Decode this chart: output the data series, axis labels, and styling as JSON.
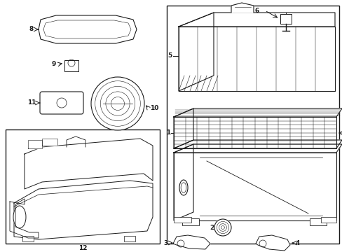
{
  "bg_color": "#ffffff",
  "line_color": "#1a1a1a",
  "fig_width": 4.89,
  "fig_height": 3.6,
  "dpi": 100,
  "lw": 0.8,
  "fs": 6.5
}
